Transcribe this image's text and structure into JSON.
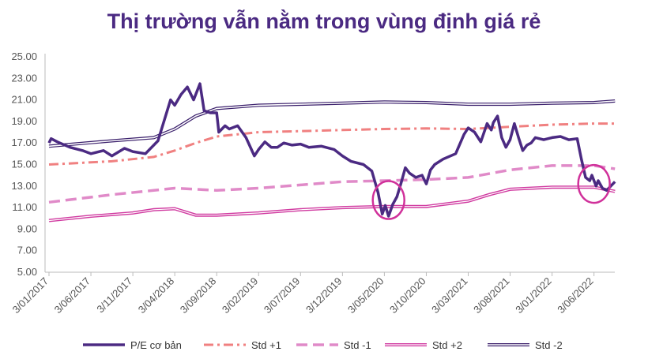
{
  "chart_data": {
    "type": "line",
    "title": "Thị trường vẫn nằm trong vùng định giá rẻ",
    "xlabel": "",
    "ylabel": "",
    "ylim": [
      5,
      25
    ],
    "y_ticks": [
      "25.00",
      "23.00",
      "21.00",
      "19.00",
      "17.00",
      "15.00",
      "13.00",
      "11.00",
      "9.00",
      "7.00",
      "5.00"
    ],
    "x_ticks": [
      "3/01/2017",
      "3/06/2017",
      "3/11/2017",
      "3/04/2018",
      "3/09/2018",
      "3/02/2019",
      "3/07/2019",
      "3/12/2019",
      "3/05/2020",
      "3/10/2020",
      "3/03/2021",
      "3/08/2021",
      "3/01/2022",
      "3/06/2022"
    ],
    "grid": false,
    "legend_position": "bottom",
    "colors": {
      "pe": "#4b2a82",
      "std_plus1": "#f08080",
      "std_minus1": "#e08ac8",
      "std_plus2": "#d03aa0",
      "std_minus2": "#3a1f6b",
      "highlight": "#d0309a",
      "title": "#4b2a82"
    },
    "series": [
      {
        "name": "P/E cơ bản",
        "x": [
          0,
          0.05,
          0.2,
          0.5,
          0.8,
          1.0,
          1.3,
          1.5,
          1.8,
          2.0,
          2.3,
          2.6,
          2.9,
          3.0,
          3.15,
          3.3,
          3.45,
          3.6,
          3.7,
          3.85,
          4.0,
          4.05,
          4.2,
          4.3,
          4.5,
          4.7,
          4.9,
          5.0,
          5.15,
          5.3,
          5.45,
          5.6,
          5.8,
          6.0,
          6.2,
          6.5,
          6.8,
          7.0,
          7.2,
          7.5,
          7.7,
          7.85,
          7.95,
          8.02,
          8.1,
          8.2,
          8.3,
          8.4,
          8.5,
          8.6,
          8.75,
          8.9,
          9.0,
          9.1,
          9.2,
          9.4,
          9.7,
          9.9,
          10.0,
          10.15,
          10.3,
          10.45,
          10.55,
          10.6,
          10.7,
          10.8,
          10.9,
          11.0,
          11.1,
          11.2,
          11.3,
          11.4,
          11.5,
          11.6,
          11.8,
          12.0,
          12.2,
          12.4,
          12.6,
          12.7,
          12.8,
          12.9,
          12.95,
          13.05,
          13.1,
          13.2,
          13.3,
          13.4,
          13.5
        ],
        "values": [
          17.0,
          17.4,
          17.1,
          16.6,
          16.3,
          16.0,
          16.3,
          15.8,
          16.5,
          16.2,
          16.0,
          17.2,
          21.0,
          20.5,
          21.5,
          22.2,
          21.0,
          22.5,
          20.0,
          19.8,
          19.8,
          18.0,
          18.6,
          18.3,
          18.6,
          17.5,
          15.8,
          16.4,
          17.1,
          16.6,
          16.6,
          17.0,
          16.8,
          16.9,
          16.6,
          16.7,
          16.4,
          15.8,
          15.3,
          15.0,
          14.4,
          12.4,
          10.4,
          11.2,
          10.2,
          11.3,
          12.0,
          13.3,
          14.7,
          14.2,
          13.8,
          14.0,
          13.2,
          14.5,
          15.0,
          15.5,
          16.0,
          17.8,
          18.4,
          18.0,
          17.1,
          18.8,
          18.2,
          18.9,
          19.5,
          17.5,
          16.6,
          17.3,
          18.8,
          17.5,
          16.3,
          16.8,
          17.0,
          17.5,
          17.3,
          17.5,
          17.6,
          17.3,
          17.4,
          15.5,
          13.8,
          13.5,
          14.0,
          13.0,
          13.5,
          12.8,
          12.6,
          13.0,
          13.4
        ]
      },
      {
        "name": "Std +1",
        "x": [
          0,
          1.5,
          2.5,
          3.0,
          3.5,
          4.0,
          5.0,
          6.0,
          7.0,
          8.0,
          9.0,
          10.0,
          11.0,
          12.0,
          13.0,
          13.5
        ],
        "values": [
          15.0,
          15.3,
          15.7,
          16.3,
          17.0,
          17.6,
          18.0,
          18.1,
          18.2,
          18.3,
          18.35,
          18.3,
          18.5,
          18.7,
          18.8,
          18.8
        ]
      },
      {
        "name": "Std -1",
        "x": [
          0,
          1.5,
          2.5,
          3.0,
          4.0,
          5.0,
          6.0,
          7.0,
          8.0,
          9.0,
          10.0,
          11.0,
          12.0,
          13.0,
          13.5
        ],
        "values": [
          11.5,
          12.2,
          12.6,
          12.8,
          12.6,
          12.8,
          13.1,
          13.4,
          13.5,
          13.6,
          13.8,
          14.5,
          14.9,
          14.9,
          14.6
        ]
      },
      {
        "name": "Std +2",
        "x": [
          0,
          1.0,
          2.0,
          2.5,
          3.0,
          3.5,
          4.0,
          5.0,
          6.0,
          7.0,
          8.0,
          9.0,
          10.0,
          10.5,
          11.0,
          12.0,
          13.0,
          13.5
        ],
        "values": [
          9.8,
          10.2,
          10.5,
          10.8,
          10.9,
          10.3,
          10.3,
          10.5,
          10.8,
          11.0,
          11.1,
          11.1,
          11.6,
          12.2,
          12.7,
          12.9,
          12.9,
          12.5
        ]
      },
      {
        "name": "Std -2",
        "x": [
          0,
          1.5,
          2.5,
          3.0,
          3.5,
          4.0,
          5.0,
          6.0,
          7.0,
          8.0,
          9.0,
          10.0,
          11.0,
          12.0,
          13.0,
          13.5
        ],
        "values": [
          16.7,
          17.2,
          17.5,
          18.3,
          19.5,
          20.2,
          20.5,
          20.6,
          20.7,
          20.8,
          20.75,
          20.6,
          20.6,
          20.7,
          20.75,
          20.9
        ]
      }
    ],
    "annotations": [
      {
        "shape": "circle",
        "x": 8.1,
        "y": 11.7
      },
      {
        "shape": "circle",
        "x": 13.0,
        "y": 13.2
      }
    ]
  }
}
